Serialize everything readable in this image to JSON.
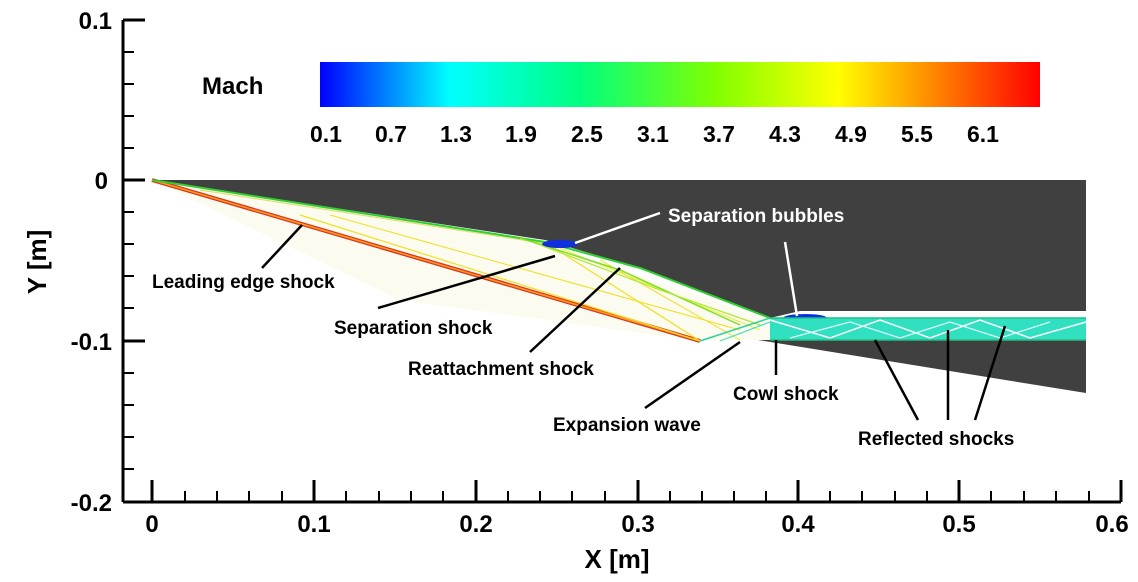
{
  "figure": {
    "xlabel": "X [m]",
    "ylabel": "Y [m]",
    "x_ticks": [
      "0",
      "0.1",
      "0.2",
      "0.3",
      "0.4",
      "0.5",
      "0.6"
    ],
    "y_ticks": [
      "0.1",
      "0",
      "-0.1",
      "-0.2"
    ]
  },
  "colorbar": {
    "title": "Mach",
    "labels": [
      "0.1",
      "0.7",
      "1.3",
      "1.9",
      "2.5",
      "3.1",
      "3.7",
      "4.3",
      "4.9",
      "5.5",
      "6.1"
    ],
    "colors": [
      "#0000ff",
      "#00ffff",
      "#00ff80",
      "#80ff00",
      "#ffff00",
      "#ff8000",
      "#ff0000"
    ]
  },
  "annotations": {
    "separation_bubbles": "Separation bubbles",
    "leading_edge_shock": "Leading edge shock",
    "separation_shock": "Separation shock",
    "reattachment_shock": "Reattachment shock",
    "cowl_shock": "Cowl shock",
    "expansion_wave": "Expansion wave",
    "reflected_shocks": "Reflected shocks"
  },
  "colors": {
    "geometry": "#404040",
    "shock_red": "#e0301e",
    "shock_yellow": "#f0e020",
    "shock_green": "#30d030",
    "shock_cyan": "#30e0c0",
    "bubble_blue": "#1030e0"
  }
}
